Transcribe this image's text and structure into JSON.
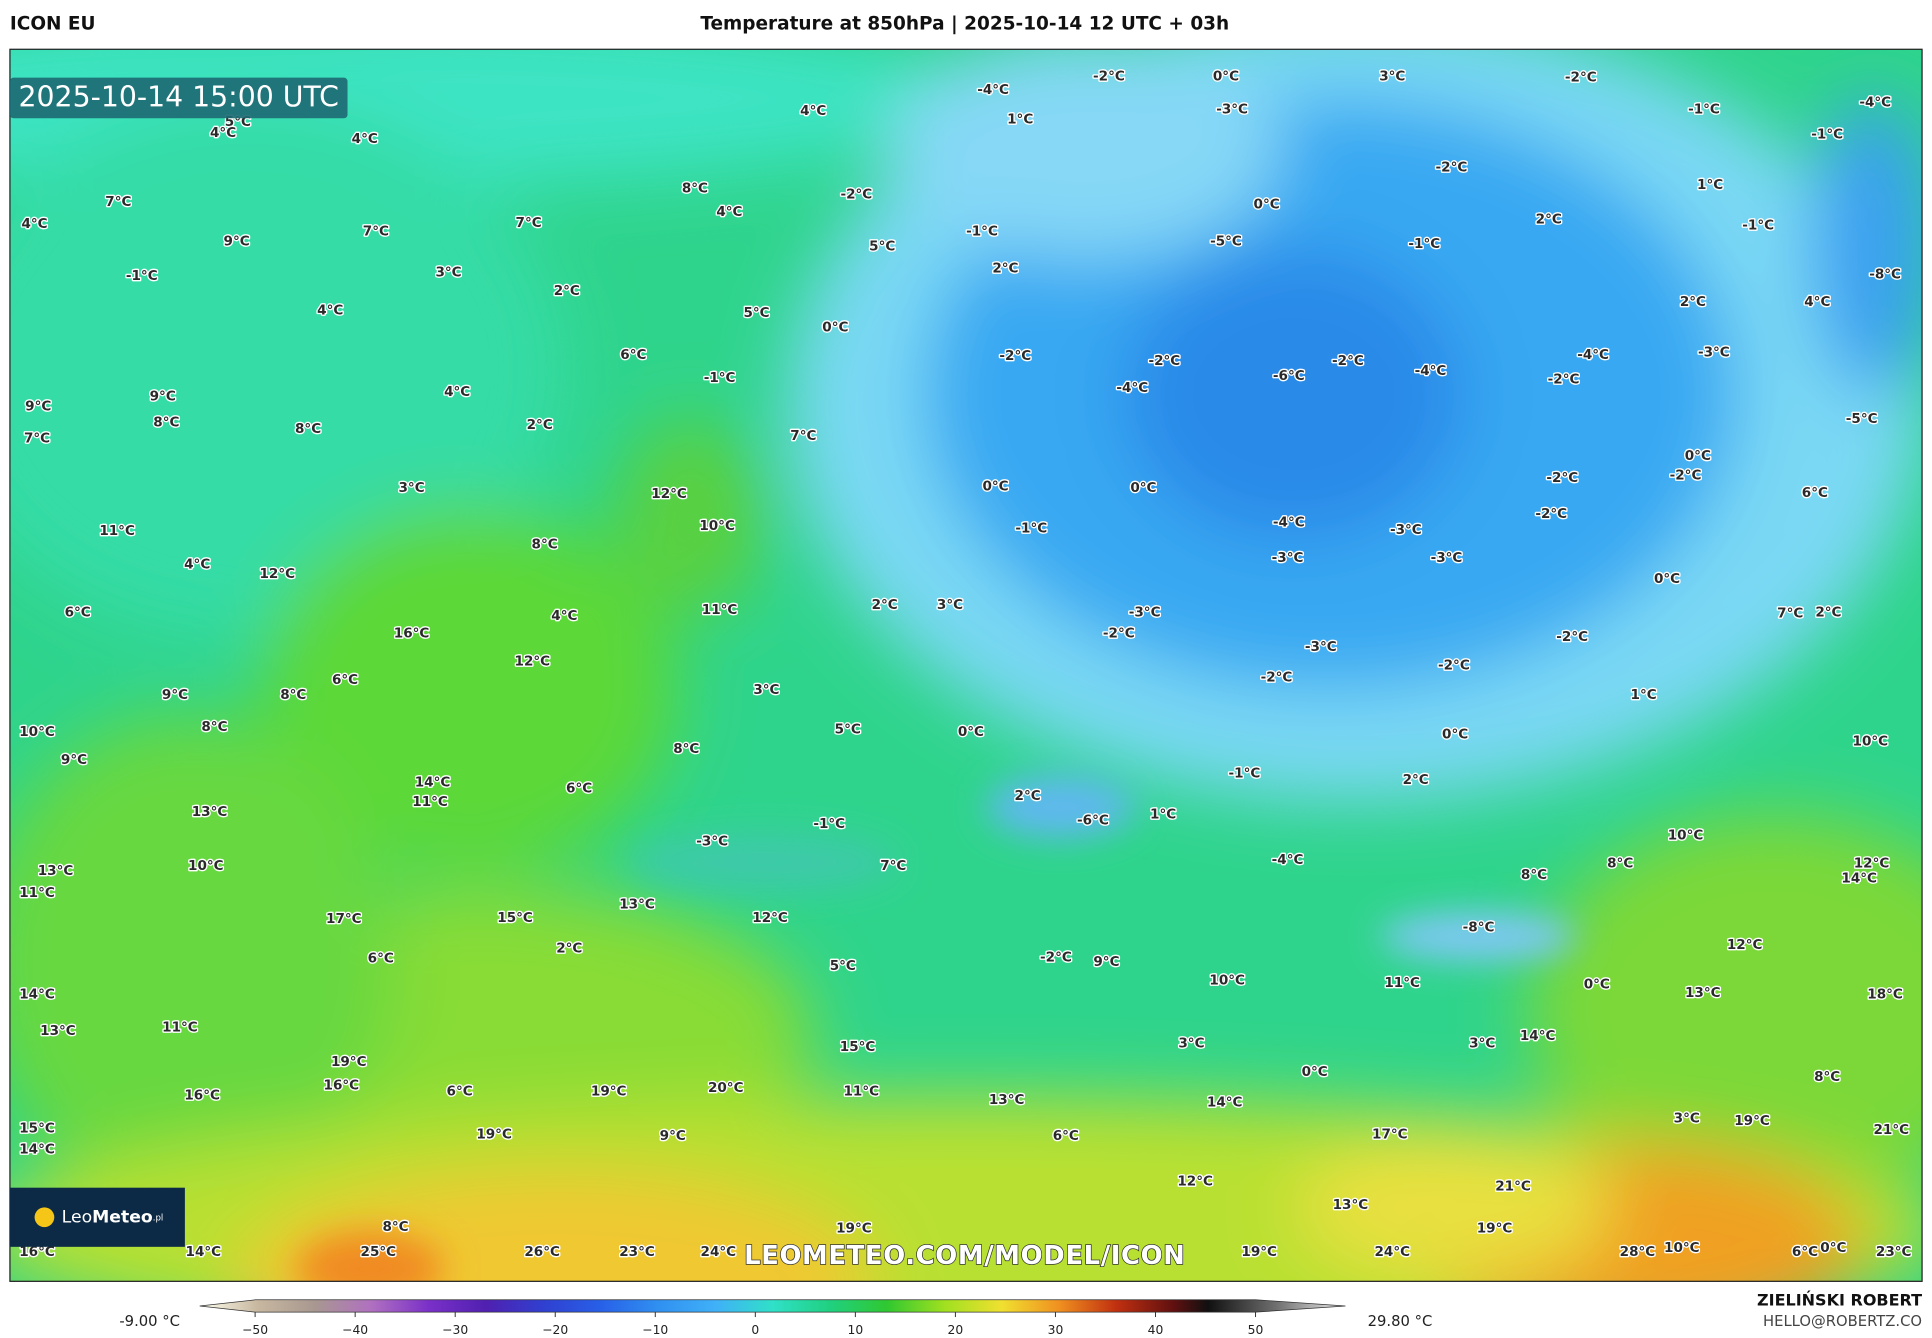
{
  "header": {
    "model": "ICON EU",
    "title": "Temperature at 850hPa | 2025-10-14 12 UTC + 03h"
  },
  "map": {
    "valid_time": "2025-10-14 15:00 UTC",
    "labels": [
      "4°C",
      "-4°C",
      "-2°C",
      "0°C",
      "3°C",
      "-2°C",
      "-4°C",
      "1°C",
      "-3°C",
      "-1°C",
      "-1°C",
      "5°C",
      "4°C",
      "4°C",
      "-2°C",
      "1°C",
      "-2°C",
      "8°C",
      "4°C",
      "0°C",
      "7°C",
      "7°C",
      "2°C",
      "-1°C",
      "4°C",
      "7°C",
      "9°C",
      "-1°C",
      "-5°C",
      "-1°C",
      "5°C",
      "2°C",
      "-1°C",
      "3°C",
      "-8°C",
      "2°C",
      "2°C",
      "4°C",
      "4°C",
      "5°C",
      "0°C",
      "-4°C",
      "-3°C",
      "6°C",
      "-2°C",
      "-2°C",
      "-6°C",
      "-2°C",
      "-4°C",
      "-2°C",
      "-1°C",
      "4°C",
      "-4°C",
      "9°C",
      "9°C",
      "8°C",
      "8°C",
      "2°C",
      "-5°C",
      "7°C",
      "7°C",
      "0°C",
      "-2°C",
      "-2°C",
      "3°C",
      "12°C",
      "0°C",
      "0°C",
      "6°C",
      "-2°C",
      "11°C",
      "10°C",
      "-1°C",
      "-4°C",
      "-3°C",
      "8°C",
      "4°C",
      "-3°C",
      "-3°C",
      "12°C",
      "0°C",
      "6°C",
      "4°C",
      "11°C",
      "2°C",
      "3°C",
      "-3°C",
      "7°C",
      "2°C",
      "-2°C",
      "16°C",
      "-3°C",
      "-2°C",
      "12°C",
      "-2°C",
      "-2°C",
      "6°C",
      "3°C",
      "9°C",
      "8°C",
      "1°C",
      "10°C",
      "8°C",
      "5°C",
      "0°C",
      "0°C",
      "10°C",
      "9°C",
      "8°C",
      "-1°C",
      "2°C",
      "14°C",
      "11°C",
      "6°C",
      "2°C",
      "-6°C",
      "1°C",
      "13°C",
      "-1°C",
      "-3°C",
      "10°C",
      "-4°C",
      "8°C",
      "8°C",
      "12°C",
      "14°C",
      "13°C",
      "10°C",
      "7°C",
      "11°C",
      "13°C",
      "17°C",
      "15°C",
      "12°C",
      "-8°C",
      "2°C",
      "6°C",
      "-2°C",
      "9°C",
      "12°C",
      "5°C",
      "10°C",
      "11°C",
      "0°C",
      "13°C",
      "18°C",
      "14°C",
      "11°C",
      "13°C",
      "3°C",
      "3°C",
      "14°C",
      "15°C",
      "19°C",
      "0°C",
      "8°C",
      "16°C",
      "6°C",
      "19°C",
      "20°C",
      "11°C",
      "16°C",
      "13°C",
      "14°C",
      "3°C",
      "19°C",
      "21°C",
      "15°C",
      "19°C",
      "9°C",
      "6°C",
      "17°C",
      "14°C",
      "12°C",
      "21°C",
      "13°C",
      "8°C",
      "19°C",
      "19°C",
      "16°C",
      "14°C",
      "25°C",
      "26°C",
      "23°C",
      "24°C",
      "19°C",
      "24°C",
      "28°C",
      "10°C",
      "6°C",
      "0°C",
      "23°C"
    ],
    "logo": {
      "leo": "Leo",
      "meteo": "Meteo",
      "tld": ".pl"
    },
    "url": "LEOMETEO.COM/MODEL/ICON"
  },
  "legend": {
    "min_label": "-9.00 °C",
    "max_label": "29.80 °C",
    "ticks": [
      {
        "value": -50,
        "label": "−50"
      },
      {
        "value": -40,
        "label": "−40"
      },
      {
        "value": -30,
        "label": "−30"
      },
      {
        "value": -20,
        "label": "−20"
      },
      {
        "value": -10,
        "label": "−10"
      },
      0,
      10,
      20,
      30,
      40,
      50
    ]
  },
  "footer": {
    "author": "ZIELIŃSKI ROBERT",
    "email": "HELLO@ROBERTZ.CO"
  }
}
